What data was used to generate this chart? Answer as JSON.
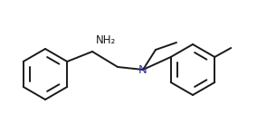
{
  "bg_color": "#ffffff",
  "line_color": "#1a1a1a",
  "line_width": 1.4,
  "text_color": "#1a1a1a",
  "nh2_label": "NH₂",
  "n_label": "N",
  "font_size": 8.5
}
